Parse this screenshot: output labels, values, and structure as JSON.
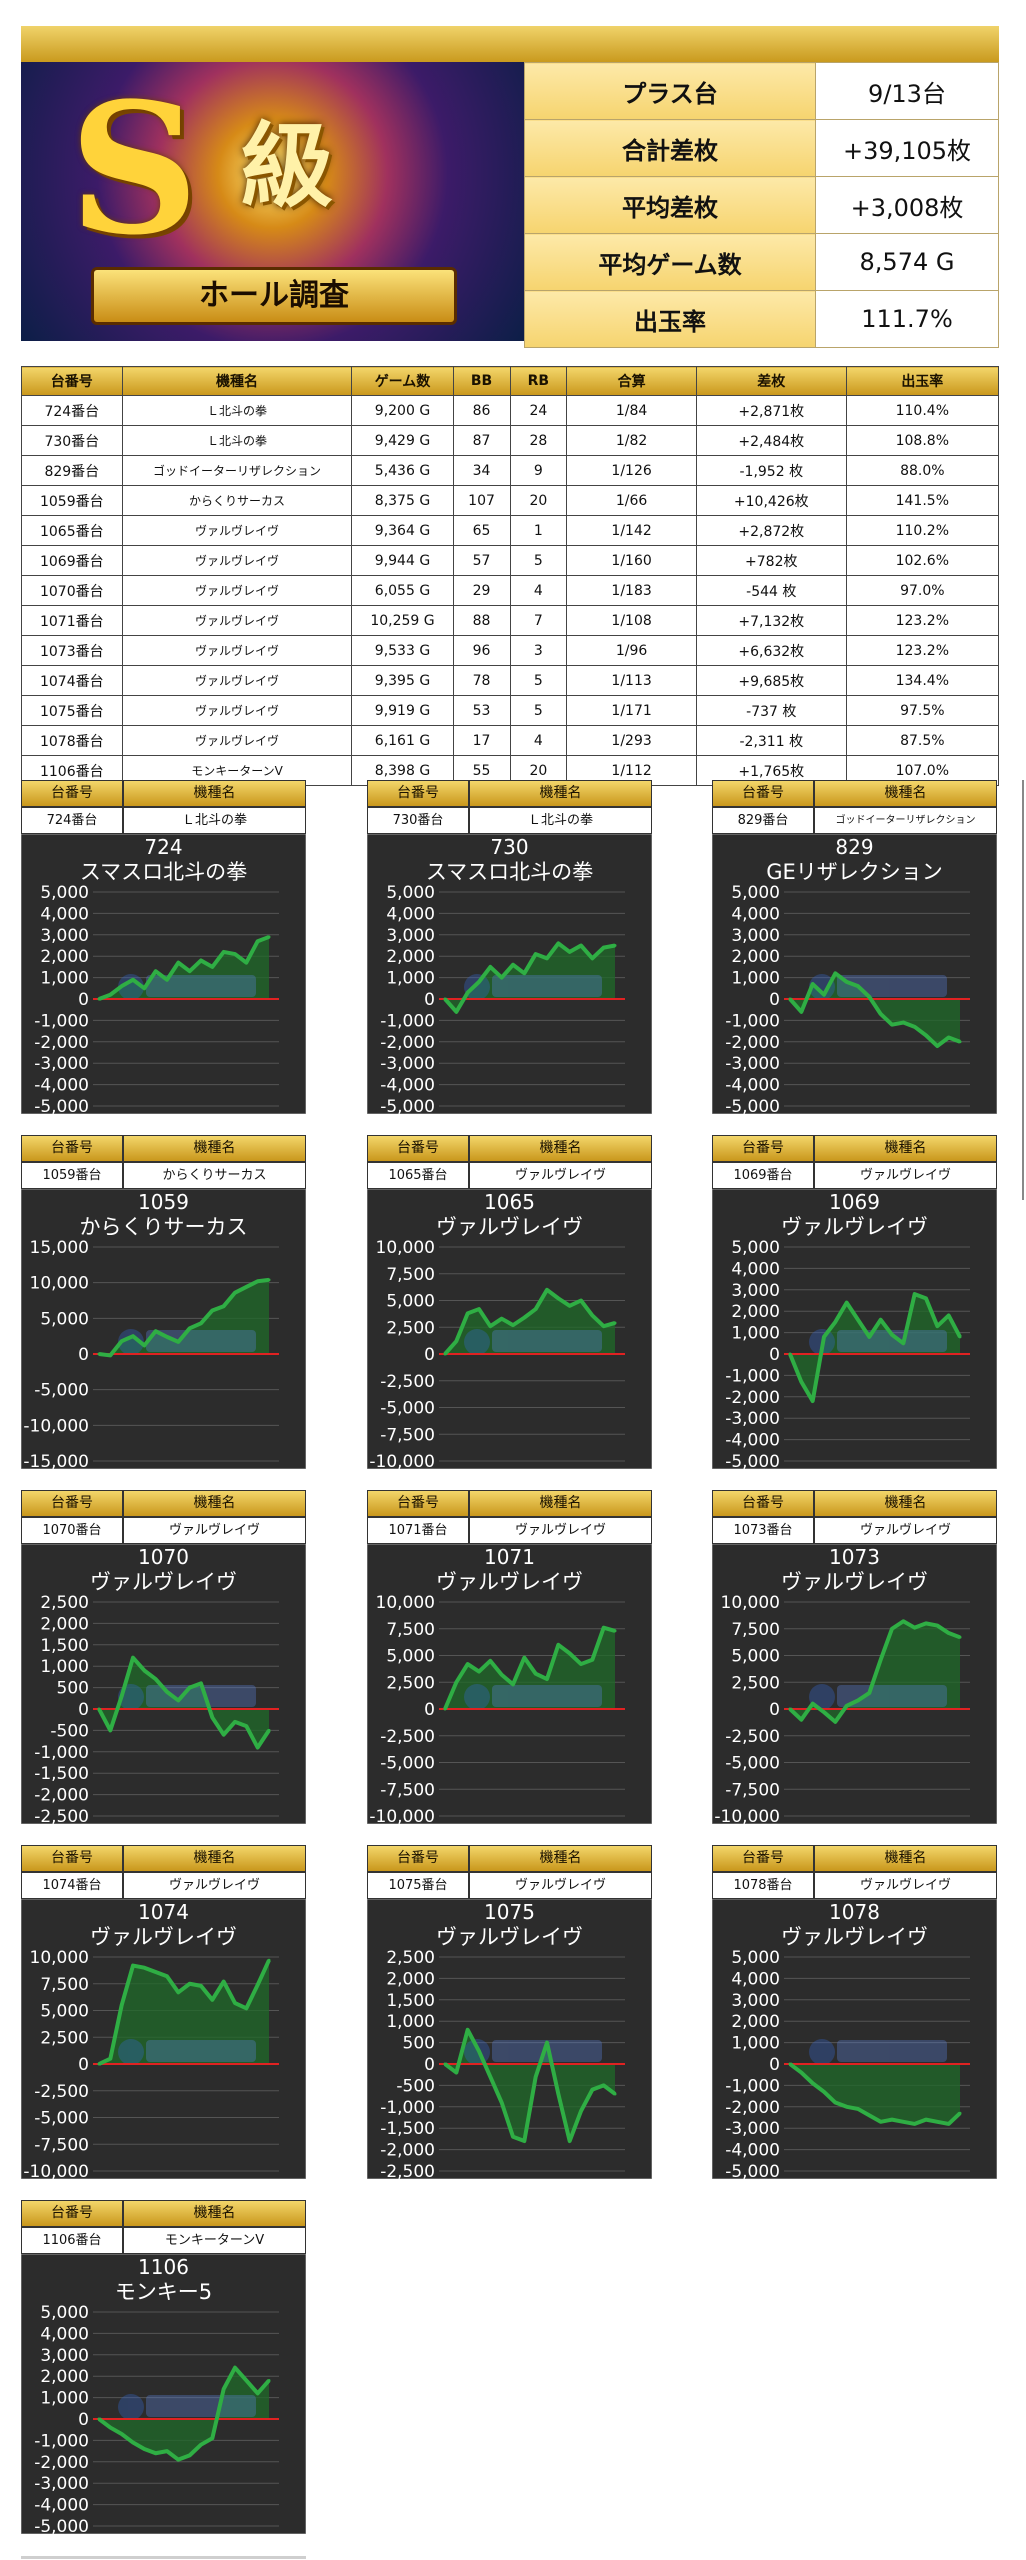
{
  "summary": {
    "rows": [
      {
        "label": "プラス台",
        "value": "9/13台"
      },
      {
        "label": "合計差枚",
        "value": "+39,105枚"
      },
      {
        "label": "平均差枚",
        "value": "+3,008枚"
      },
      {
        "label": "平均ゲーム数",
        "value": "8,574 G"
      },
      {
        "label": "出玉率",
        "value": "111.7%"
      }
    ]
  },
  "banner": {
    "big": "S",
    "kanji": "級",
    "ribbon": "ホール調査"
  },
  "table": {
    "headers": [
      "台番号",
      "機種名",
      "ゲーム数",
      "BB",
      "RB",
      "合算",
      "差枚",
      "出玉率"
    ],
    "rows": [
      {
        "no": "724番台",
        "name": "Ｌ北斗の拳",
        "games": "9,200 G",
        "bb": "86",
        "rb": "24",
        "gassan": "1/84",
        "diff": "+2,871枚",
        "sign": "pos",
        "rate": "110.4%"
      },
      {
        "no": "730番台",
        "name": "Ｌ北斗の拳",
        "games": "9,429 G",
        "bb": "87",
        "rb": "28",
        "gassan": "1/82",
        "diff": "+2,484枚",
        "sign": "pos",
        "rate": "108.8%"
      },
      {
        "no": "829番台",
        "name": "ゴッドイーターリザレクション",
        "games": "5,436 G",
        "bb": "34",
        "rb": "9",
        "gassan": "1/126",
        "diff": "-1,952 枚",
        "sign": "neg",
        "rate": "88.0%"
      },
      {
        "no": "1059番台",
        "name": "からくりサーカス",
        "games": "8,375 G",
        "bb": "107",
        "rb": "20",
        "gassan": "1/66",
        "diff": "+10,426枚",
        "sign": "pos",
        "rate": "141.5%"
      },
      {
        "no": "1065番台",
        "name": "ヴァルヴレイヴ",
        "games": "9,364 G",
        "bb": "65",
        "rb": "1",
        "gassan": "1/142",
        "diff": "+2,872枚",
        "sign": "pos",
        "rate": "110.2%"
      },
      {
        "no": "1069番台",
        "name": "ヴァルヴレイヴ",
        "games": "9,944 G",
        "bb": "57",
        "rb": "5",
        "gassan": "1/160",
        "diff": "+782枚",
        "sign": "pos",
        "rate": "102.6%"
      },
      {
        "no": "1070番台",
        "name": "ヴァルヴレイヴ",
        "games": "6,055 G",
        "bb": "29",
        "rb": "4",
        "gassan": "1/183",
        "diff": "-544 枚",
        "sign": "neg",
        "rate": "97.0%"
      },
      {
        "no": "1071番台",
        "name": "ヴァルヴレイヴ",
        "games": "10,259 G",
        "bb": "88",
        "rb": "7",
        "gassan": "1/108",
        "diff": "+7,132枚",
        "sign": "pos",
        "rate": "123.2%"
      },
      {
        "no": "1073番台",
        "name": "ヴァルヴレイヴ",
        "games": "9,533 G",
        "bb": "96",
        "rb": "3",
        "gassan": "1/96",
        "diff": "+6,632枚",
        "sign": "pos",
        "rate": "123.2%"
      },
      {
        "no": "1074番台",
        "name": "ヴァルヴレイヴ",
        "games": "9,395 G",
        "bb": "78",
        "rb": "5",
        "gassan": "1/113",
        "diff": "+9,685枚",
        "sign": "pos",
        "rate": "134.4%"
      },
      {
        "no": "1075番台",
        "name": "ヴァルヴレイヴ",
        "games": "9,919 G",
        "bb": "53",
        "rb": "5",
        "gassan": "1/171",
        "diff": "-737 枚",
        "sign": "neg",
        "rate": "97.5%"
      },
      {
        "no": "1078番台",
        "name": "ヴァルヴレイヴ",
        "games": "6,161 G",
        "bb": "17",
        "rb": "4",
        "gassan": "1/293",
        "diff": "-2,311 枚",
        "sign": "neg",
        "rate": "87.5%"
      },
      {
        "no": "1106番台",
        "name": "モンキーターンV",
        "games": "8,398 G",
        "bb": "55",
        "rb": "20",
        "gassan": "1/112",
        "diff": "+1,765枚",
        "sign": "pos",
        "rate": "107.0%"
      }
    ]
  },
  "panel_headers": {
    "no": "台番号",
    "name": "機種名"
  },
  "colors": {
    "chart_bg": "#2c2c2c",
    "line": "#2fae44",
    "fill": "#1f6a28",
    "zero": "#e02222",
    "grid": "#555555",
    "tick": "#ffffff"
  },
  "chart_data": [
    {
      "type": "area",
      "no": "724番台",
      "model": "Ｌ北斗の拳",
      "title_num": "724",
      "title": "スマスロ北斗の拳",
      "ylim": [
        -5000,
        5000
      ],
      "ticks": [
        "5,000",
        "4,000",
        "3,000",
        "2,000",
        "1,000",
        "0",
        "-1,000",
        "-2,000",
        "-3,000",
        "-4,000",
        "-5,000"
      ],
      "values": [
        0,
        200,
        600,
        900,
        500,
        1300,
        900,
        1700,
        1300,
        1800,
        1500,
        2200,
        2100,
        1700,
        2700,
        2900
      ]
    },
    {
      "type": "area",
      "no": "730番台",
      "model": "Ｌ北斗の拳",
      "title_num": "730",
      "title": "スマスロ北斗の拳",
      "ylim": [
        -5000,
        5000
      ],
      "ticks": [
        "5,000",
        "4,000",
        "3,000",
        "2,000",
        "1,000",
        "0",
        "-1,000",
        "-2,000",
        "-3,000",
        "-4,000",
        "-5,000"
      ],
      "values": [
        0,
        -600,
        300,
        800,
        1500,
        1000,
        1600,
        1200,
        2100,
        1900,
        2600,
        2200,
        2500,
        1900,
        2400,
        2500
      ]
    },
    {
      "type": "area",
      "no": "829番台",
      "model": "ゴッドイーターリザレクション",
      "title_num": "829",
      "title": "GEリザレクション",
      "ylim": [
        -5000,
        5000
      ],
      "ticks": [
        "5,000",
        "4,000",
        "3,000",
        "2,000",
        "1,000",
        "0",
        "-1,000",
        "-2,000",
        "-3,000",
        "-4,000",
        "-5,000"
      ],
      "values": [
        0,
        -600,
        700,
        200,
        1200,
        800,
        600,
        100,
        -700,
        -1200,
        -1100,
        -1300,
        -1700,
        -2200,
        -1800,
        -2000
      ]
    },
    {
      "type": "area",
      "no": "1059番台",
      "model": "からくりサーカス",
      "title_num": "1059",
      "title": "からくりサーカス",
      "ylim": [
        -15000,
        15000
      ],
      "ticks": [
        "15,000",
        "10,000",
        "5,000",
        "0",
        "-5,000",
        "-10,000",
        "-15,000"
      ],
      "values": [
        0,
        -200,
        1800,
        2500,
        1200,
        3200,
        2400,
        1700,
        3600,
        4300,
        6100,
        6700,
        8600,
        9400,
        10200,
        10400
      ]
    },
    {
      "type": "area",
      "no": "1065番台",
      "model": "ヴァルヴレイヴ",
      "title_num": "1065",
      "title": "ヴァルヴレイヴ",
      "ylim": [
        -10000,
        10000
      ],
      "ticks": [
        "10,000",
        "7,500",
        "5,000",
        "2,500",
        "0",
        "-2,500",
        "-5,000",
        "-7,500",
        "-10,000"
      ],
      "values": [
        0,
        1200,
        3800,
        4200,
        2600,
        3300,
        2700,
        3400,
        4200,
        6000,
        5200,
        4500,
        5000,
        3600,
        2600,
        2900
      ]
    },
    {
      "type": "area",
      "no": "1069番台",
      "model": "ヴァルヴレイヴ",
      "title_num": "1069",
      "title": "ヴァルヴレイヴ",
      "ylim": [
        -5000,
        5000
      ],
      "ticks": [
        "5,000",
        "4,000",
        "3,000",
        "2,000",
        "1,000",
        "0",
        "-1,000",
        "-2,000",
        "-3,000",
        "-4,000",
        "-5,000"
      ],
      "values": [
        0,
        -1300,
        -2200,
        800,
        1500,
        2400,
        1600,
        800,
        1600,
        900,
        500,
        2800,
        2600,
        1300,
        1800,
        800
      ]
    },
    {
      "type": "area",
      "no": "1070番台",
      "model": "ヴァルヴレイヴ",
      "title_num": "1070",
      "title": "ヴァルヴレイヴ",
      "ylim": [
        -2500,
        2500
      ],
      "ticks": [
        "2,500",
        "2,000",
        "1,500",
        "1,000",
        "500",
        "0",
        "-500",
        "-1,000",
        "-1,500",
        "-2,000",
        "-2,500"
      ],
      "values": [
        0,
        -500,
        300,
        1200,
        900,
        700,
        400,
        200,
        500,
        600,
        -200,
        -600,
        -300,
        -400,
        -900,
        -500
      ]
    },
    {
      "type": "area",
      "no": "1071番台",
      "model": "ヴァルヴレイヴ",
      "title_num": "1071",
      "title": "ヴァルヴレイヴ",
      "ylim": [
        -10000,
        10000
      ],
      "ticks": [
        "10,000",
        "7,500",
        "5,000",
        "2,500",
        "0",
        "-2,500",
        "-5,000",
        "-7,500",
        "-10,000"
      ],
      "values": [
        0,
        2500,
        4200,
        3500,
        4500,
        3200,
        2300,
        4800,
        3300,
        2800,
        6000,
        5200,
        4200,
        4600,
        7600,
        7300
      ]
    },
    {
      "type": "area",
      "no": "1073番台",
      "model": "ヴァルヴレイヴ",
      "title_num": "1073",
      "title": "ヴァルヴレイヴ",
      "ylim": [
        -10000,
        10000
      ],
      "ticks": [
        "10,000",
        "7,500",
        "5,000",
        "2,500",
        "0",
        "-2,500",
        "-5,000",
        "-7,500",
        "-10,000"
      ],
      "values": [
        0,
        -1000,
        500,
        -300,
        -1200,
        300,
        800,
        1500,
        4600,
        7500,
        8200,
        7600,
        8000,
        7800,
        7100,
        6700
      ]
    },
    {
      "type": "area",
      "no": "1074番台",
      "model": "ヴァルヴレイヴ",
      "title_num": "1074",
      "title": "ヴァルヴレイヴ",
      "ylim": [
        -10000,
        10000
      ],
      "ticks": [
        "10,000",
        "7,500",
        "5,000",
        "2,500",
        "0",
        "-2,500",
        "-5,000",
        "-7,500",
        "-10,000"
      ],
      "values": [
        0,
        500,
        5500,
        9200,
        9000,
        8600,
        8200,
        6700,
        7500,
        7300,
        6000,
        7700,
        5700,
        5200,
        7400,
        9700
      ]
    },
    {
      "type": "area",
      "no": "1075番台",
      "model": "ヴァルヴレイヴ",
      "title_num": "1075",
      "title": "ヴァルヴレイヴ",
      "ylim": [
        -2500,
        2500
      ],
      "ticks": [
        "2,500",
        "2,000",
        "1,500",
        "1,000",
        "500",
        "0",
        "-500",
        "-1,000",
        "-1,500",
        "-2,000",
        "-2,500"
      ],
      "values": [
        0,
        -200,
        800,
        300,
        -300,
        -900,
        -1700,
        -1800,
        -300,
        500,
        -700,
        -1800,
        -1100,
        -600,
        -500,
        -700
      ]
    },
    {
      "type": "area",
      "no": "1078番台",
      "model": "ヴァルヴレイヴ",
      "title_num": "1078",
      "title": "ヴァルヴレイヴ",
      "ylim": [
        -5000,
        5000
      ],
      "ticks": [
        "5,000",
        "4,000",
        "3,000",
        "2,000",
        "1,000",
        "0",
        "-1,000",
        "-2,000",
        "-3,000",
        "-4,000",
        "-5,000"
      ],
      "values": [
        0,
        -400,
        -900,
        -1300,
        -1800,
        -2000,
        -2100,
        -2400,
        -2700,
        -2600,
        -2700,
        -2800,
        -2600,
        -2700,
        -2800,
        -2300
      ]
    },
    {
      "type": "area",
      "no": "1106番台",
      "model": "モンキーターンV",
      "title_num": "1106",
      "title": "モンキー5",
      "ylim": [
        -5000,
        5000
      ],
      "ticks": [
        "5,000",
        "4,000",
        "3,000",
        "2,000",
        "1,000",
        "0",
        "-1,000",
        "-2,000",
        "-3,000",
        "-4,000",
        "-5,000"
      ],
      "values": [
        0,
        -400,
        -700,
        -1100,
        -1400,
        -1600,
        -1500,
        -1900,
        -1700,
        -1200,
        -900,
        1400,
        2400,
        1800,
        1200,
        1800
      ]
    }
  ]
}
